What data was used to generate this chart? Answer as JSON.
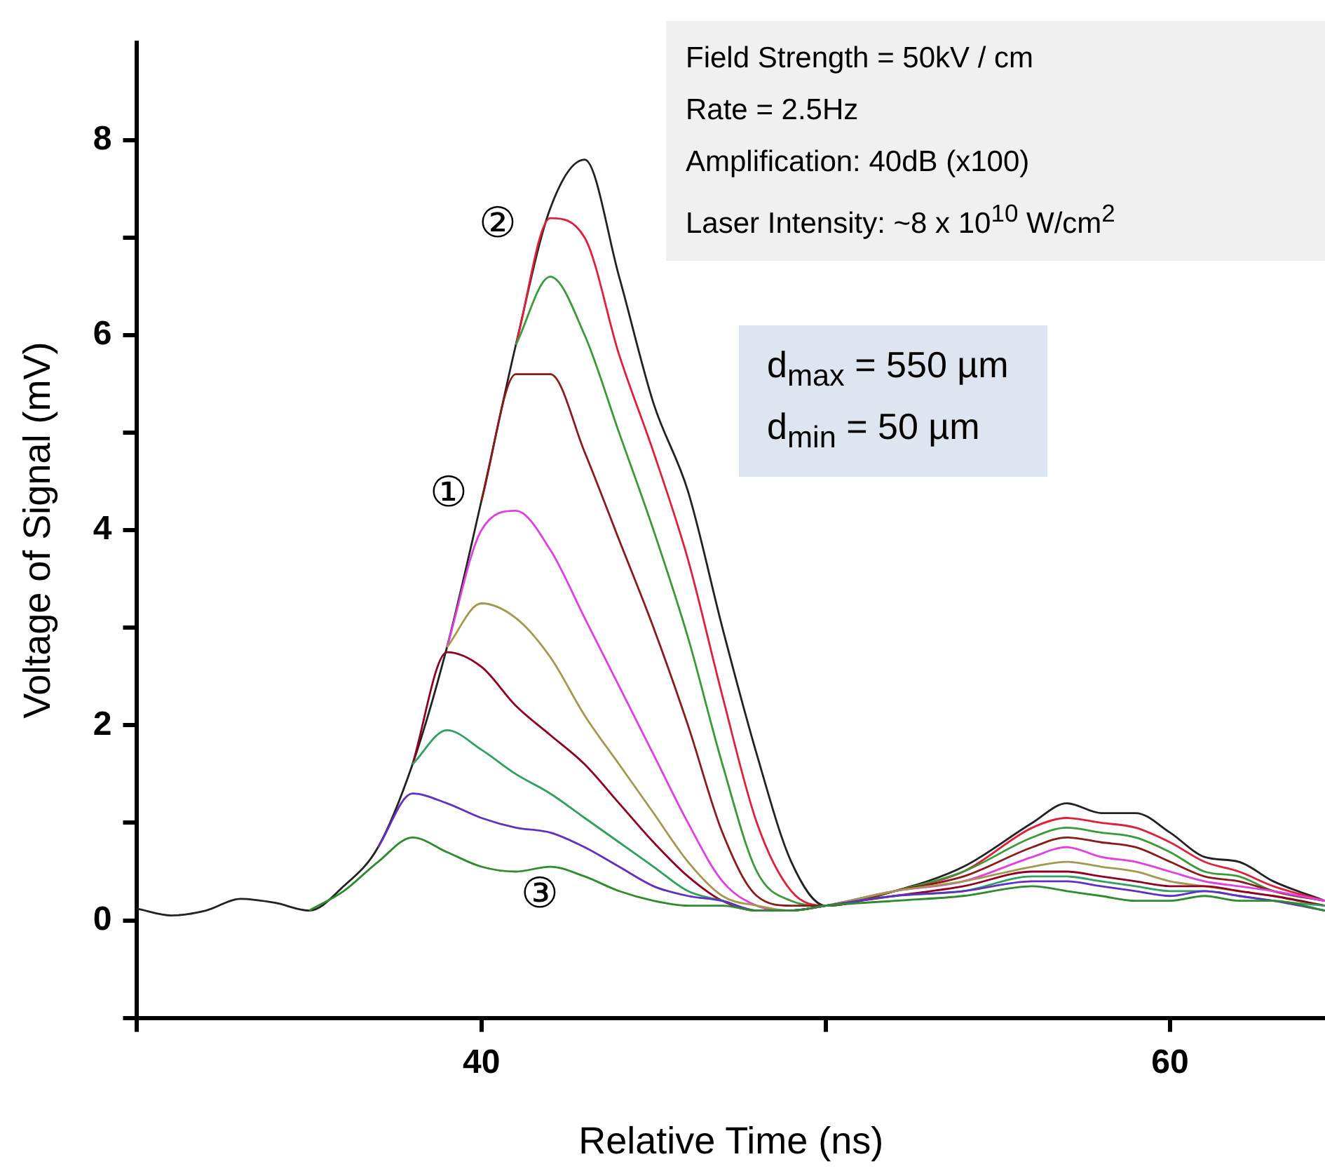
{
  "chart_data": {
    "type": "line",
    "xlabel": "Relative Time (ns)",
    "ylabel": "Voltage of Signal (mV)",
    "x": [
      30,
      31,
      32,
      33,
      34,
      35,
      36,
      37,
      38,
      39,
      40,
      41,
      42,
      43,
      44,
      45,
      46,
      47,
      48,
      49,
      50,
      52,
      54,
      56,
      57,
      58,
      59,
      60,
      61,
      62,
      63,
      64.5
    ],
    "series": [
      {
        "color": "#222222",
        "values": [
          0.12,
          0.05,
          0.1,
          0.22,
          0.18,
          0.1,
          0.35,
          0.75,
          1.6,
          2.8,
          4.3,
          5.9,
          7.3,
          7.8,
          6.6,
          5.3,
          4.4,
          3.0,
          1.7,
          0.6,
          0.15,
          0.3,
          0.55,
          1.0,
          1.2,
          1.1,
          1.1,
          0.9,
          0.65,
          0.6,
          0.4,
          0.2
        ]
      },
      {
        "color": "#e0203a",
        "values": [
          null,
          null,
          null,
          null,
          null,
          null,
          null,
          null,
          null,
          null,
          null,
          5.9,
          7.2,
          7.0,
          5.8,
          4.8,
          3.7,
          2.3,
          1.0,
          0.3,
          0.15,
          0.3,
          0.5,
          0.95,
          1.05,
          1.0,
          0.95,
          0.8,
          0.6,
          0.5,
          0.35,
          0.2
        ]
      },
      {
        "color": "#3a9a3a",
        "values": [
          null,
          null,
          null,
          null,
          null,
          null,
          null,
          null,
          null,
          null,
          null,
          5.9,
          6.6,
          6.0,
          5.0,
          4.0,
          2.9,
          1.6,
          0.5,
          0.2,
          0.15,
          0.3,
          0.5,
          0.85,
          0.95,
          0.9,
          0.85,
          0.7,
          0.5,
          0.45,
          0.3,
          0.2
        ]
      },
      {
        "color": "#8b1a1a",
        "values": [
          null,
          null,
          null,
          null,
          null,
          null,
          null,
          null,
          null,
          null,
          4.3,
          5.6,
          5.6,
          4.8,
          3.9,
          3.0,
          2.0,
          0.9,
          0.25,
          0.15,
          0.15,
          0.3,
          0.45,
          0.75,
          0.85,
          0.8,
          0.75,
          0.6,
          0.45,
          0.4,
          0.3,
          0.2
        ]
      },
      {
        "color": "#e040e0",
        "values": [
          null,
          null,
          null,
          null,
          null,
          null,
          null,
          null,
          null,
          2.8,
          4.0,
          4.2,
          3.8,
          3.1,
          2.4,
          1.7,
          1.0,
          0.4,
          0.15,
          0.1,
          0.15,
          0.3,
          0.4,
          0.65,
          0.75,
          0.65,
          0.6,
          0.5,
          0.4,
          0.35,
          0.3,
          0.2
        ]
      },
      {
        "color": "#a09a50",
        "values": [
          null,
          null,
          null,
          null,
          null,
          null,
          null,
          null,
          null,
          2.8,
          3.25,
          3.1,
          2.7,
          2.1,
          1.6,
          1.1,
          0.6,
          0.25,
          0.15,
          0.1,
          0.15,
          0.3,
          0.4,
          0.55,
          0.6,
          0.55,
          0.5,
          0.4,
          0.35,
          0.3,
          0.25,
          0.15
        ]
      },
      {
        "color": "#900020",
        "values": [
          null,
          null,
          null,
          null,
          null,
          null,
          null,
          null,
          1.6,
          2.75,
          2.6,
          2.2,
          1.9,
          1.6,
          1.2,
          0.8,
          0.45,
          0.2,
          0.1,
          0.1,
          0.15,
          0.25,
          0.35,
          0.5,
          0.5,
          0.45,
          0.4,
          0.35,
          0.35,
          0.3,
          0.25,
          0.15
        ]
      },
      {
        "color": "#30a060",
        "values": [
          null,
          null,
          null,
          null,
          null,
          null,
          null,
          null,
          1.6,
          1.95,
          1.75,
          1.5,
          1.3,
          1.05,
          0.8,
          0.55,
          0.3,
          0.2,
          0.1,
          0.1,
          0.15,
          0.25,
          0.3,
          0.45,
          0.45,
          0.4,
          0.35,
          0.3,
          0.3,
          0.25,
          0.2,
          0.15
        ]
      },
      {
        "color": "#6030c0",
        "values": [
          null,
          null,
          null,
          null,
          null,
          null,
          null,
          0.75,
          1.3,
          1.2,
          1.05,
          0.95,
          0.9,
          0.75,
          0.55,
          0.35,
          0.25,
          0.2,
          0.1,
          0.1,
          0.15,
          0.25,
          0.3,
          0.4,
          0.4,
          0.35,
          0.3,
          0.25,
          0.3,
          0.25,
          0.2,
          0.1
        ]
      },
      {
        "color": "#2e8b2e",
        "values": [
          null,
          null,
          null,
          null,
          null,
          0.1,
          0.3,
          0.6,
          0.85,
          0.7,
          0.55,
          0.5,
          0.55,
          0.45,
          0.3,
          0.2,
          0.15,
          0.15,
          0.1,
          0.1,
          0.15,
          0.2,
          0.25,
          0.35,
          0.3,
          0.25,
          0.2,
          0.2,
          0.25,
          0.2,
          0.2,
          0.1
        ]
      }
    ],
    "xlim": [
      30,
      64.5
    ],
    "xticks": [
      {
        "value": 30,
        "label": null
      },
      40,
      {
        "value": 50,
        "label": null
      },
      60
    ],
    "ylim": [
      -1,
      9
    ],
    "yticks": [
      {
        "value": -1,
        "label": null
      },
      0,
      {
        "value": 1,
        "label": null
      },
      2,
      {
        "value": 3,
        "label": null
      },
      4,
      {
        "value": 5,
        "label": null
      },
      6,
      {
        "value": 7,
        "label": null
      },
      8
    ],
    "grid": false,
    "legend": false,
    "marker": "none",
    "line_style": "solid",
    "annotations": [
      "Field Strength = 50kV / cm",
      "Rate = 2.5Hz",
      "Amplification: 40dB (x100)",
      "Laser Intensity: ~8 x 10$^{10}$ W/cm$^{2}$",
      "d$_{max}$ = 550 µm",
      "d$_{min}$ = 50 µm",
      "①",
      "②",
      "③"
    ]
  }
}
